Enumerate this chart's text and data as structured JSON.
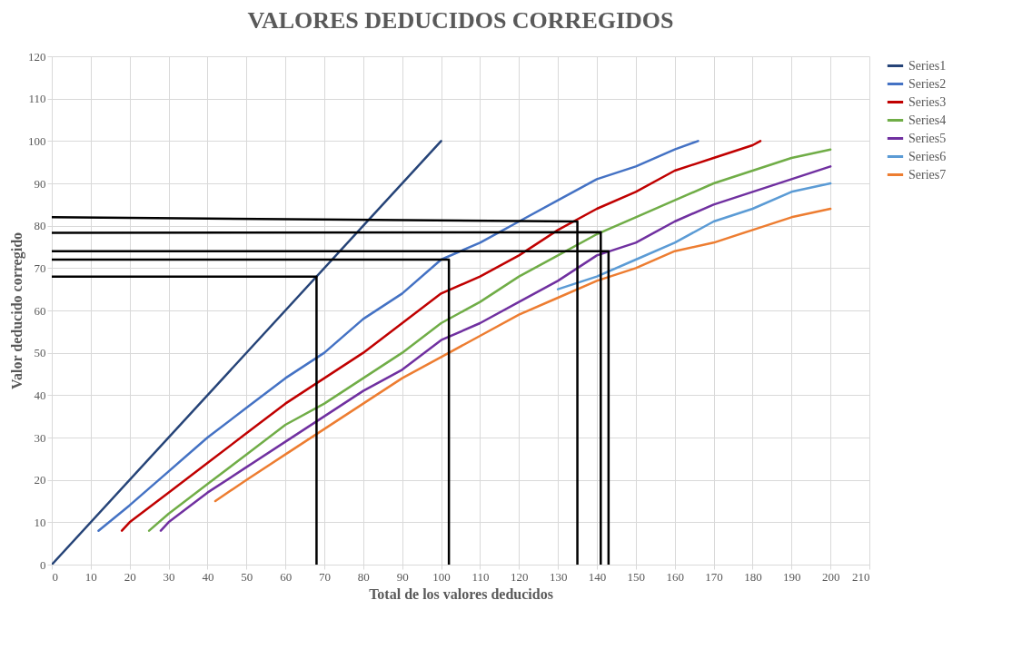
{
  "chart_data": {
    "type": "line",
    "title": "VALORES DEDUCIDOS CORREGIDOS",
    "xlabel": "Total de los valores deducidos",
    "ylabel": "Valor deducido corregido",
    "xlim": [
      0,
      210
    ],
    "xticks": [
      0,
      10,
      20,
      30,
      40,
      50,
      60,
      70,
      80,
      90,
      100,
      110,
      120,
      130,
      140,
      150,
      160,
      170,
      180,
      190,
      200,
      210
    ],
    "ylim": [
      0,
      120
    ],
    "yticks": [
      0,
      10,
      20,
      30,
      40,
      50,
      60,
      70,
      80,
      90,
      100,
      110,
      120
    ],
    "grid": true,
    "legend": "right",
    "marker": "none",
    "line_style": "solid",
    "series": [
      {
        "name": "Series1",
        "color": "#264478",
        "x": [
          0,
          100
        ],
        "values": [
          0,
          100
        ]
      },
      {
        "name": "Series2",
        "color": "#4472c4",
        "x": [
          12,
          20,
          30,
          40,
          50,
          60,
          70,
          80,
          90,
          100,
          110,
          120,
          130,
          140,
          150,
          160,
          166
        ],
        "values": [
          8,
          14,
          22,
          30,
          37,
          44,
          50,
          58,
          64,
          72,
          76,
          81,
          86,
          91,
          94,
          98,
          100
        ]
      },
      {
        "name": "Series3",
        "color": "#c00000",
        "x": [
          18,
          20,
          30,
          40,
          50,
          60,
          70,
          80,
          90,
          100,
          110,
          120,
          130,
          140,
          150,
          160,
          170,
          180,
          182
        ],
        "values": [
          8,
          10,
          17,
          24,
          31,
          38,
          44,
          50,
          57,
          64,
          68,
          73,
          79,
          84,
          88,
          93,
          96,
          99,
          100
        ]
      },
      {
        "name": "Series4",
        "color": "#70ad47",
        "x": [
          25,
          30,
          40,
          50,
          60,
          70,
          80,
          90,
          100,
          110,
          120,
          130,
          140,
          150,
          160,
          170,
          180,
          190,
          200
        ],
        "values": [
          8,
          12,
          19,
          26,
          33,
          38,
          44,
          50,
          57,
          62,
          68,
          73,
          78,
          82,
          86,
          90,
          93,
          96,
          98
        ]
      },
      {
        "name": "Series5",
        "color": "#7030a0",
        "x": [
          28,
          30,
          40,
          50,
          60,
          70,
          80,
          90,
          100,
          110,
          120,
          130,
          140,
          150,
          160,
          170,
          180,
          190,
          200
        ],
        "values": [
          8,
          10,
          17,
          23,
          29,
          35,
          41,
          46,
          53,
          57,
          62,
          67,
          73,
          76,
          81,
          85,
          88,
          91,
          94
        ]
      },
      {
        "name": "Series6",
        "color": "#5b9bd5",
        "x": [
          130,
          140,
          150,
          160,
          170,
          180,
          190,
          200
        ],
        "values": [
          65,
          68,
          72,
          76,
          81,
          84,
          88,
          90
        ]
      },
      {
        "name": "Series7",
        "color": "#ed7d31",
        "x": [
          42,
          50,
          60,
          70,
          80,
          90,
          100,
          110,
          120,
          130,
          140,
          150,
          160,
          170,
          180,
          190,
          200
        ],
        "values": [
          15,
          20,
          26,
          32,
          38,
          44,
          49,
          54,
          59,
          63,
          67,
          70,
          74,
          76,
          79,
          82,
          84
        ]
      },
      {
        "color": "#000000",
        "x": [
          0,
          68,
          68
        ],
        "values": [
          68,
          68,
          0
        ]
      },
      {
        "color": "#000000",
        "x": [
          0,
          102,
          102
        ],
        "values": [
          72,
          72,
          0
        ]
      },
      {
        "color": "#000000",
        "x": [
          0,
          143,
          143
        ],
        "values": [
          74,
          74,
          0
        ]
      },
      {
        "color": "#000000",
        "x": [
          0,
          141,
          141
        ],
        "values": [
          78.3,
          78.5,
          0
        ]
      },
      {
        "color": "#000000",
        "x": [
          0,
          135,
          135
        ],
        "values": [
          82,
          81,
          0
        ]
      }
    ]
  }
}
